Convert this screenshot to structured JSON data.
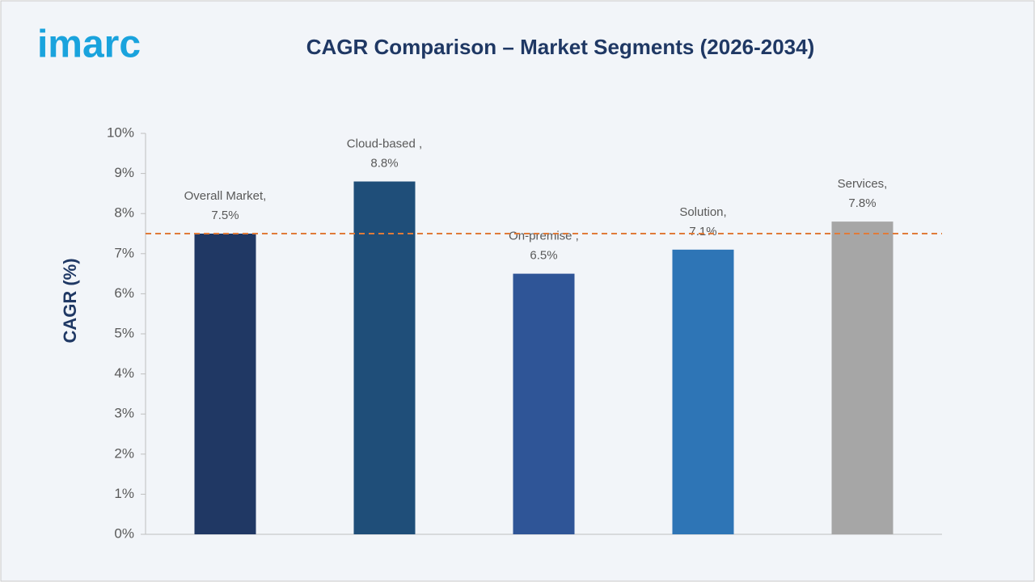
{
  "chart_data": {
    "type": "bar",
    "title": "CAGR Comparison – Market Segments (2026-2034)",
    "logo": "imarc",
    "y_label": "CAGR (%)",
    "categories": [
      "Overall Market,",
      "Cloud-based ,",
      "On-premise ,",
      "Solution,",
      "Services,"
    ],
    "values": [
      7.5,
      8.8,
      6.5,
      7.1,
      7.8
    ],
    "value_labels": [
      "7.5%",
      "8.8%",
      "6.5%",
      "7.1%",
      "7.8%"
    ],
    "colors": [
      "#203864",
      "#1f4e79",
      "#2f5597",
      "#2e75b6",
      "#a6a6a6"
    ],
    "reference_line": {
      "value": 7.5,
      "color": "#e07b39"
    },
    "ylim": [
      0,
      10
    ],
    "yticks": [
      {
        "value": 0,
        "label": "0%"
      },
      {
        "value": 1,
        "label": "1%"
      },
      {
        "value": 2,
        "label": "2%"
      },
      {
        "value": 3,
        "label": "3%"
      },
      {
        "value": 4,
        "label": "4%"
      },
      {
        "value": 5,
        "label": "5%"
      },
      {
        "value": 6,
        "label": "6%"
      },
      {
        "value": 7,
        "label": "7%"
      },
      {
        "value": 8,
        "label": "8%"
      },
      {
        "value": 9,
        "label": "9%"
      },
      {
        "value": 10,
        "label": "10%"
      }
    ]
  }
}
